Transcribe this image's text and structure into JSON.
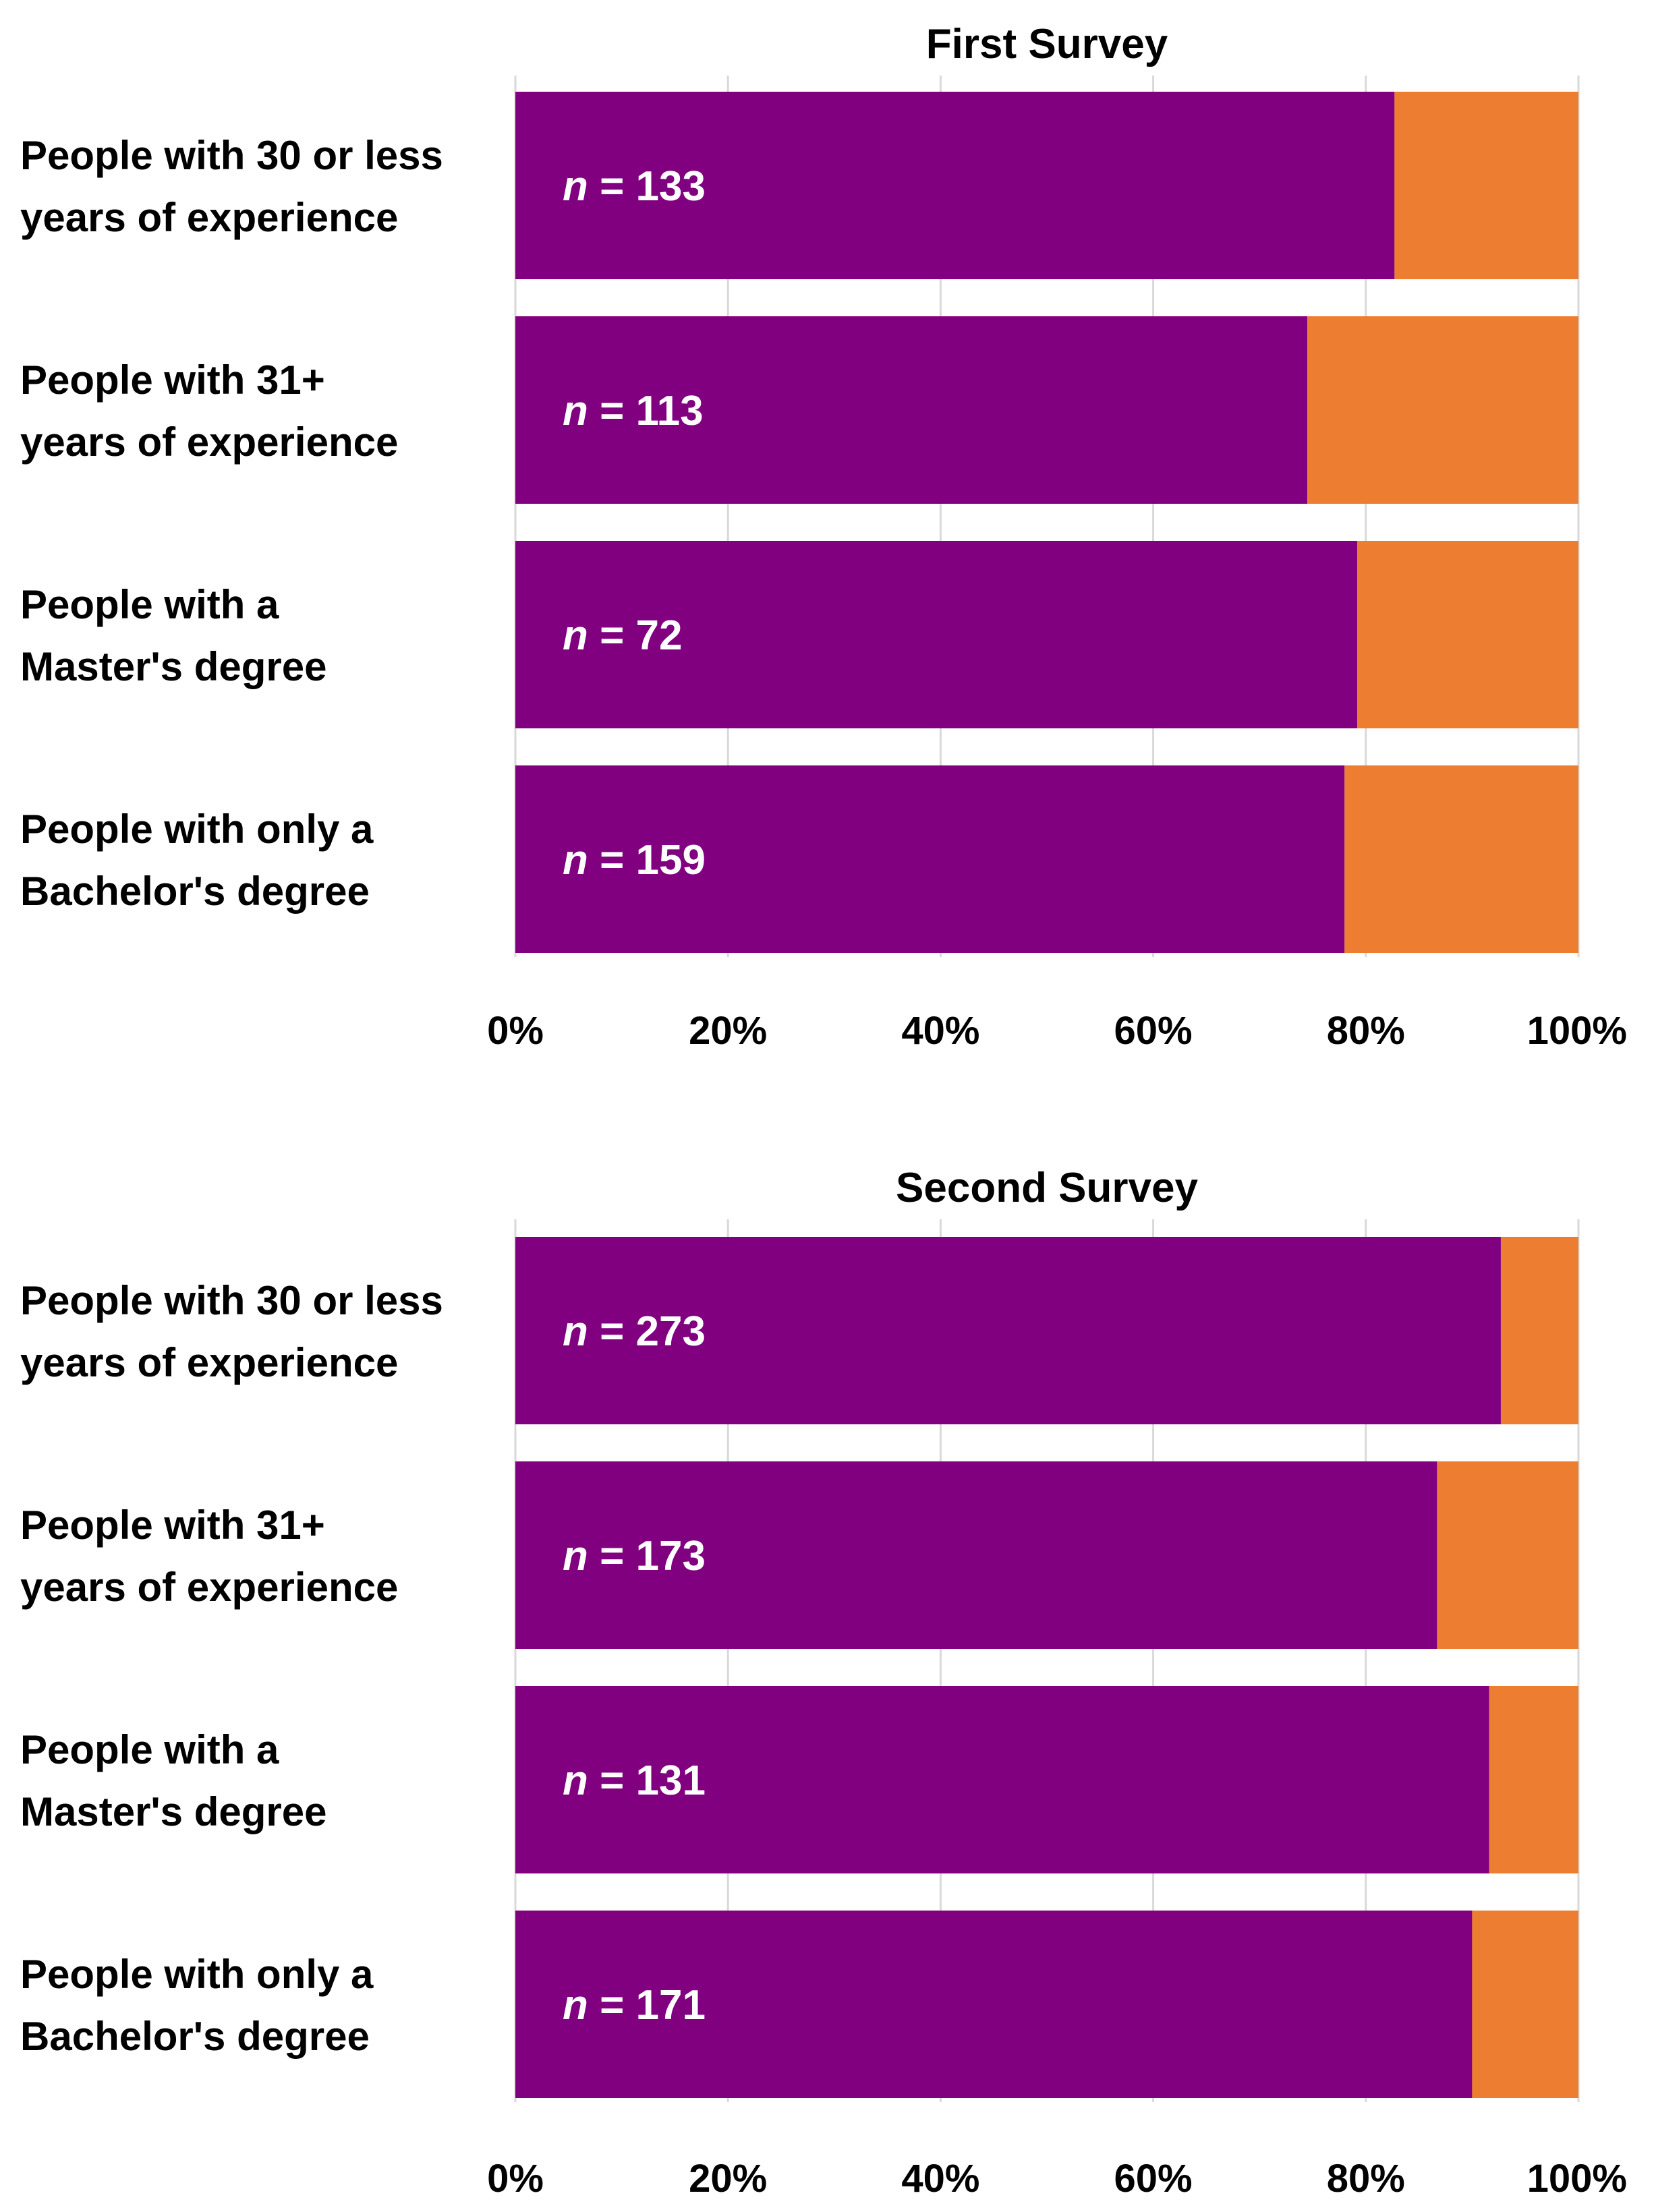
{
  "colors": {
    "primary": "#800080",
    "secondary": "#ED7D31",
    "grid": "#D9D9D9",
    "background": "#FFFFFF"
  },
  "chart_data": [
    {
      "type": "bar",
      "orientation": "horizontal",
      "stacked": "percent",
      "title": "First Survey",
      "categories": [
        "People with 30 or less years of experience",
        "People with 31+ years of experience",
        "People with a Master's degree",
        "People with only a Bachelor's degree"
      ],
      "category_lines": [
        [
          "People with 30 or less",
          "years of experience"
        ],
        [
          "People with 31+",
          "years of experience"
        ],
        [
          "People with a",
          "Master's degree"
        ],
        [
          "People with only a",
          "Bachelor's degree"
        ]
      ],
      "series": [
        {
          "name": "primary",
          "color": "#800080",
          "values": [
            82.7,
            74.5,
            79.2,
            78.0
          ]
        },
        {
          "name": "secondary",
          "color": "#ED7D31",
          "values": [
            17.3,
            25.5,
            20.8,
            22.0
          ]
        }
      ],
      "annotations": [
        {
          "prefix": "n",
          "text": " = 133"
        },
        {
          "prefix": "n",
          "text": " = 113"
        },
        {
          "prefix": "n",
          "text": " = 72"
        },
        {
          "prefix": "n",
          "text": " = 159"
        }
      ],
      "xticks": [
        "0%",
        "20%",
        "40%",
        "60%",
        "80%",
        "100%"
      ],
      "xlim": [
        0,
        100
      ],
      "grid": true,
      "legend": "none"
    },
    {
      "type": "bar",
      "orientation": "horizontal",
      "stacked": "percent",
      "title": "Second Survey",
      "categories": [
        "People with 30 or less years of experience",
        "People with 31+ years of experience",
        "People with a Master's degree",
        "People with only a Bachelor's degree"
      ],
      "category_lines": [
        [
          "People with 30 or less",
          "years of experience"
        ],
        [
          "People with 31+",
          "years of experience"
        ],
        [
          "People with a",
          "Master's degree"
        ],
        [
          "People with only a",
          "Bachelor's degree"
        ]
      ],
      "series": [
        {
          "name": "primary",
          "color": "#800080",
          "values": [
            92.7,
            86.7,
            91.6,
            90.0
          ]
        },
        {
          "name": "secondary",
          "color": "#ED7D31",
          "values": [
            7.3,
            13.3,
            8.4,
            10.0
          ]
        }
      ],
      "annotations": [
        {
          "prefix": "n",
          "text": " = 273"
        },
        {
          "prefix": "n",
          "text": " = 173"
        },
        {
          "prefix": "n",
          "text": " = 131"
        },
        {
          "prefix": "n",
          "text": " = 171"
        }
      ],
      "xticks": [
        "0%",
        "20%",
        "40%",
        "60%",
        "80%",
        "100%"
      ],
      "xlim": [
        0,
        100
      ],
      "grid": true,
      "legend": "none"
    }
  ]
}
